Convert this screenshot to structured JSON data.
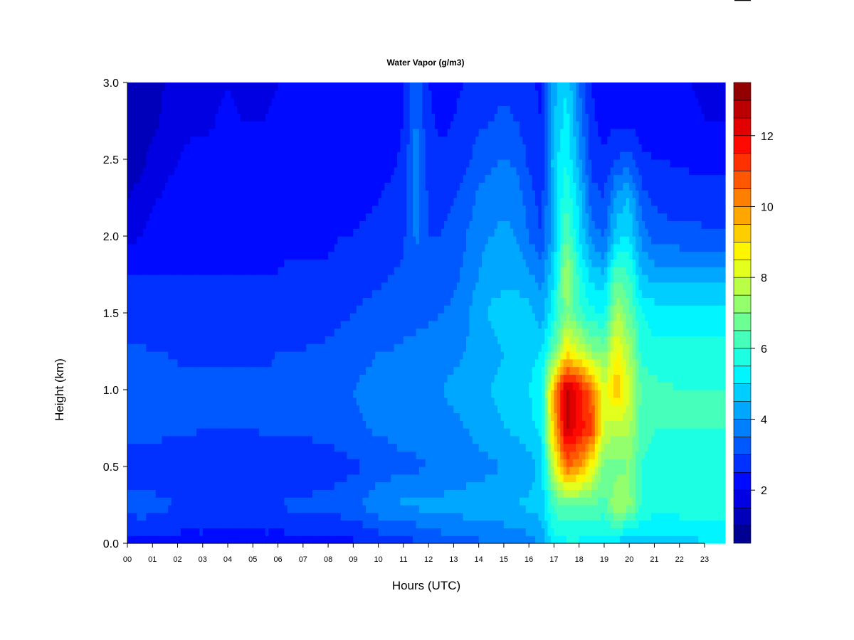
{
  "chart_data": {
    "type": "heatmap",
    "title": "Water Vapor (g/m3)",
    "xlabel": "Hours (UTC)",
    "ylabel": "Height (km)",
    "xlim": [
      0,
      23.83
    ],
    "ylim": [
      0,
      3.0
    ],
    "x_tick_labels": [
      "00",
      "01",
      "02",
      "03",
      "04",
      "05",
      "06",
      "07",
      "08",
      "09",
      "10",
      "11",
      "12",
      "13",
      "14",
      "15",
      "16",
      "17",
      "18",
      "19",
      "20",
      "21",
      "22",
      "23"
    ],
    "y_tick_labels": [
      "0.0",
      "0.5",
      "1.0",
      "1.5",
      "2.0",
      "2.5",
      "3.0"
    ],
    "colorbar": {
      "colorscale": "jet",
      "min": 0.5,
      "max": 13.5,
      "step": 0.5,
      "tick_labels": [
        "2",
        "4",
        "6",
        "8",
        "10",
        "12"
      ],
      "tick_values": [
        2,
        4,
        6,
        8,
        10,
        12
      ]
    },
    "x": [
      0,
      0.5,
      1,
      1.5,
      2,
      2.5,
      3,
      3.5,
      4,
      4.5,
      5,
      5.5,
      6,
      6.5,
      7,
      7.5,
      8,
      8.5,
      9,
      9.5,
      10,
      10.5,
      11,
      11.5,
      12,
      12.5,
      13,
      13.5,
      14,
      14.5,
      15,
      15.5,
      16,
      16.5,
      17,
      17.5,
      18,
      18.5,
      19,
      19.5,
      20,
      20.5,
      21,
      21.5,
      22,
      22.5,
      23,
      23.5
    ],
    "y": [
      0,
      0.25,
      0.5,
      0.75,
      1.0,
      1.25,
      1.5,
      1.75,
      2.0,
      2.25,
      2.5,
      2.75,
      3.0
    ],
    "z": [
      [
        2.3,
        2.4,
        2.4,
        2.3,
        2.3,
        2.2,
        2.3,
        2.2,
        2.3,
        2.2,
        2.2,
        2.3,
        2.2,
        2.3,
        2.3,
        2.2,
        2.3,
        2.3,
        2.4,
        2.5,
        2.6,
        2.7,
        2.8,
        2.9,
        3.0,
        3.2,
        3.3,
        3.4,
        3.4,
        3.5,
        3.6,
        3.6,
        3.8,
        4.0,
        5.2,
        5.4,
        5.4,
        5.3,
        5.2,
        4.8,
        4.6,
        4.6,
        4.7,
        4.7,
        4.8,
        4.8,
        5.0,
        5.0
      ],
      [
        3.2,
        3.3,
        3.2,
        3.1,
        3.0,
        3.0,
        3.0,
        2.9,
        2.9,
        2.9,
        2.9,
        3.0,
        3.0,
        3.1,
        3.1,
        3.2,
        3.2,
        3.3,
        3.4,
        3.6,
        3.9,
        4.0,
        4.1,
        4.1,
        4.2,
        4.2,
        4.2,
        4.3,
        4.3,
        4.4,
        4.4,
        4.5,
        4.6,
        4.8,
        6.2,
        6.5,
        6.5,
        6.4,
        6.3,
        7.5,
        7.2,
        6.0,
        5.8,
        5.8,
        5.8,
        5.8,
        5.8,
        5.8
      ],
      [
        2.6,
        2.6,
        2.6,
        2.5,
        2.5,
        2.5,
        2.5,
        2.5,
        2.5,
        2.5,
        2.5,
        2.6,
        2.6,
        2.6,
        2.6,
        2.6,
        2.7,
        2.8,
        2.9,
        3.0,
        3.2,
        3.3,
        3.4,
        3.4,
        3.5,
        3.5,
        3.6,
        3.7,
        3.8,
        3.9,
        4.0,
        4.1,
        4.3,
        4.6,
        8.0,
        10.5,
        10.0,
        8.5,
        6.8,
        6.8,
        7.0,
        6.0,
        5.8,
        5.8,
        5.8,
        5.7,
        5.7,
        5.7
      ],
      [
        3.3,
        3.3,
        3.2,
        3.2,
        3.1,
        3.1,
        3.0,
        3.0,
        3.0,
        3.0,
        3.0,
        3.1,
        3.1,
        3.1,
        3.1,
        3.2,
        3.2,
        3.3,
        3.4,
        3.5,
        3.6,
        3.6,
        3.7,
        3.7,
        3.8,
        3.8,
        3.9,
        4.0,
        4.2,
        4.3,
        4.5,
        4.6,
        4.8,
        5.2,
        9.5,
        12.6,
        11.8,
        11.2,
        8.0,
        7.6,
        7.6,
        6.2,
        6.0,
        6.0,
        6.0,
        6.0,
        6.0,
        6.0
      ],
      [
        3.4,
        3.4,
        3.3,
        3.3,
        3.2,
        3.2,
        3.1,
        3.1,
        3.1,
        3.1,
        3.1,
        3.1,
        3.2,
        3.2,
        3.2,
        3.3,
        3.3,
        3.4,
        3.5,
        3.6,
        3.7,
        3.8,
        3.8,
        3.9,
        3.9,
        4.0,
        4.1,
        4.2,
        4.4,
        4.5,
        4.7,
        4.8,
        5.0,
        5.4,
        9.8,
        12.8,
        11.8,
        10.5,
        8.2,
        9.5,
        8.0,
        6.4,
        6.2,
        6.1,
        6.0,
        6.0,
        6.0,
        6.0
      ],
      [
        3.1,
        3.1,
        3.0,
        3.0,
        2.9,
        2.9,
        2.9,
        2.9,
        2.9,
        2.9,
        2.9,
        2.9,
        3.0,
        3.0,
        3.0,
        3.1,
        3.1,
        3.2,
        3.3,
        3.4,
        3.5,
        3.5,
        3.6,
        3.6,
        3.7,
        3.8,
        3.9,
        4.0,
        4.2,
        4.3,
        4.5,
        4.6,
        4.8,
        5.0,
        6.5,
        8.8,
        8.0,
        7.2,
        6.8,
        8.6,
        7.5,
        5.8,
        5.6,
        5.6,
        5.6,
        5.6,
        5.6,
        5.6
      ],
      [
        2.7,
        2.7,
        2.6,
        2.6,
        2.6,
        2.6,
        2.6,
        2.6,
        2.6,
        2.6,
        2.6,
        2.6,
        2.7,
        2.7,
        2.7,
        2.7,
        2.8,
        2.9,
        3.0,
        3.1,
        3.2,
        3.2,
        3.3,
        3.4,
        3.4,
        3.5,
        3.6,
        3.9,
        4.4,
        4.6,
        4.8,
        4.8,
        4.7,
        4.2,
        5.5,
        7.0,
        6.2,
        5.6,
        5.5,
        7.6,
        6.6,
        5.5,
        5.3,
        5.3,
        5.3,
        5.3,
        5.3,
        5.3
      ],
      [
        2.5,
        2.5,
        2.5,
        2.5,
        2.5,
        2.5,
        2.5,
        2.5,
        2.5,
        2.5,
        2.5,
        2.5,
        2.5,
        2.6,
        2.6,
        2.6,
        2.6,
        2.7,
        2.8,
        2.8,
        2.9,
        3.0,
        3.1,
        3.3,
        3.1,
        3.2,
        3.4,
        3.6,
        4.0,
        4.2,
        4.3,
        4.3,
        4.1,
        3.8,
        5.0,
        7.6,
        5.8,
        4.8,
        4.5,
        6.4,
        6.0,
        4.5,
        4.3,
        4.3,
        4.2,
        4.2,
        4.2,
        4.2
      ],
      [
        1.8,
        2.0,
        2.2,
        2.3,
        2.3,
        2.3,
        2.3,
        2.4,
        2.4,
        2.3,
        2.3,
        2.4,
        2.4,
        2.4,
        2.4,
        2.4,
        2.4,
        2.5,
        2.5,
        2.6,
        2.6,
        2.7,
        2.9,
        3.6,
        3.0,
        3.0,
        3.2,
        3.5,
        3.9,
        4.0,
        4.1,
        4.0,
        3.5,
        3.0,
        4.5,
        6.5,
        5.0,
        3.8,
        3.4,
        4.8,
        5.0,
        3.8,
        3.3,
        3.2,
        3.2,
        3.2,
        3.1,
        3.1
      ],
      [
        1.5,
        1.6,
        1.9,
        2.1,
        2.2,
        2.2,
        2.2,
        2.2,
        2.3,
        2.2,
        2.2,
        2.2,
        2.3,
        2.3,
        2.3,
        2.3,
        2.3,
        2.3,
        2.4,
        2.4,
        2.5,
        2.6,
        2.8,
        3.8,
        2.9,
        2.8,
        3.0,
        3.2,
        3.6,
        3.8,
        3.9,
        3.8,
        3.2,
        2.8,
        4.6,
        6.0,
        4.8,
        3.2,
        3.0,
        4.2,
        4.5,
        3.2,
        2.9,
        2.8,
        2.8,
        2.7,
        2.7,
        2.7
      ],
      [
        1.3,
        1.4,
        1.6,
        1.8,
        2.0,
        2.1,
        2.1,
        2.1,
        2.2,
        2.1,
        2.1,
        2.1,
        2.2,
        2.2,
        2.2,
        2.2,
        2.2,
        2.2,
        2.3,
        2.3,
        2.3,
        2.4,
        2.6,
        3.8,
        2.8,
        2.6,
        2.7,
        2.9,
        3.2,
        3.4,
        3.5,
        3.4,
        2.9,
        2.6,
        4.8,
        5.5,
        4.2,
        2.8,
        2.6,
        3.0,
        3.2,
        2.6,
        2.5,
        2.5,
        2.4,
        2.4,
        2.4,
        2.3
      ],
      [
        1.2,
        1.2,
        1.4,
        1.6,
        1.8,
        1.9,
        1.9,
        2.0,
        2.1,
        2.0,
        2.0,
        2.0,
        2.1,
        2.1,
        2.1,
        2.1,
        2.1,
        2.1,
        2.2,
        2.2,
        2.2,
        2.3,
        2.5,
        3.6,
        2.6,
        2.4,
        2.5,
        2.7,
        2.9,
        3.0,
        3.1,
        3.0,
        2.7,
        2.5,
        4.5,
        5.2,
        3.8,
        2.6,
        2.3,
        2.4,
        2.4,
        2.3,
        2.2,
        2.2,
        2.1,
        2.1,
        2.0,
        2.0
      ],
      [
        1.0,
        1.1,
        1.3,
        1.5,
        1.7,
        1.8,
        1.8,
        1.9,
        2.0,
        1.9,
        1.9,
        1.9,
        2.0,
        2.0,
        2.0,
        2.0,
        2.0,
        2.0,
        2.1,
        2.1,
        2.1,
        2.2,
        2.4,
        3.4,
        2.5,
        2.3,
        2.4,
        2.5,
        2.7,
        2.8,
        2.9,
        2.8,
        2.6,
        2.4,
        4.2,
        5.0,
        3.5,
        2.5,
        2.2,
        2.2,
        2.2,
        2.1,
        2.1,
        2.0,
        2.0,
        2.0,
        1.9,
        1.9
      ]
    ]
  }
}
